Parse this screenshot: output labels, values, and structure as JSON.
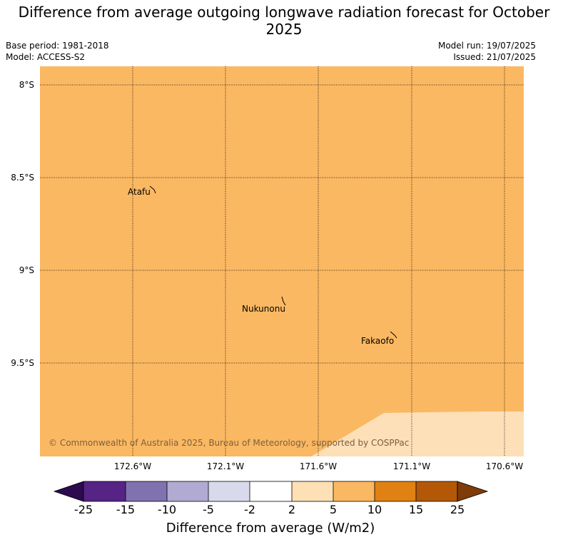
{
  "title": "Difference from average outgoing longwave radiation forecast for October 2025",
  "meta": {
    "base_period": "Base period: 1981-2018",
    "model": "Model: ACCESS-S2",
    "model_run": "Model run: 19/07/2025",
    "issued": "Issued: 21/07/2025"
  },
  "map": {
    "fill_color": "#fbb862",
    "low_region_color": "#fde0b8",
    "lat_labels": [
      "8°S",
      "8.5°S",
      "9°S",
      "9.5°S"
    ],
    "lon_labels": [
      "172.6°W",
      "172.1°W",
      "171.6°W",
      "171.1°W",
      "170.6°W"
    ],
    "places": [
      "Atafu",
      "Nukunonu",
      "Fakaofo"
    ],
    "copyright": "© Commonwealth of Australia 2025, Bureau of Meteorology, supported by COSPPac"
  },
  "colorbar": {
    "ticks": [
      "-25",
      "-15",
      "-10",
      "-5",
      "-2",
      "2",
      "5",
      "10",
      "15",
      "25"
    ],
    "colors": [
      "#552485",
      "#7f72ae",
      "#b1aad2",
      "#d9d9ec",
      "#ffffff",
      "#fee0b6",
      "#fbb862",
      "#e08113",
      "#b35807"
    ],
    "under_color": "#2d0b4f",
    "over_color": "#7f3b08",
    "label": "Difference from average (W/m2)"
  }
}
